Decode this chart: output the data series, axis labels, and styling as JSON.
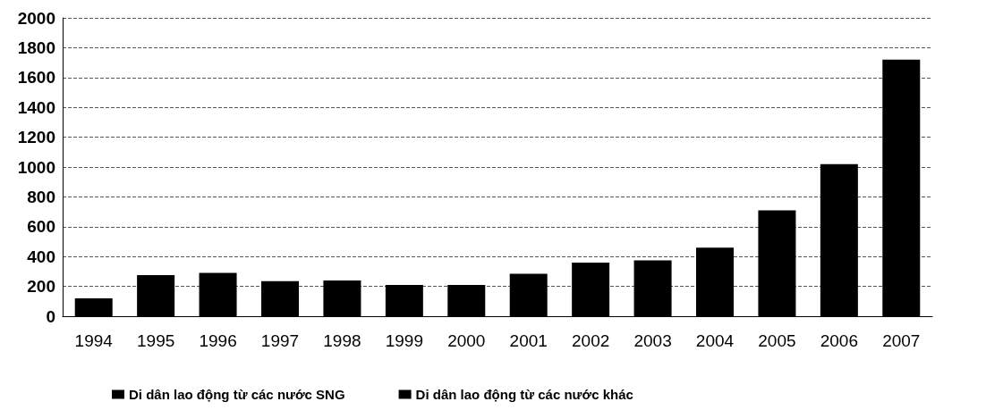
{
  "chart_data": {
    "type": "bar",
    "stacked": true,
    "categories": [
      "1994",
      "1995",
      "1996",
      "1997",
      "1998",
      "1999",
      "2000",
      "2001",
      "2002",
      "2003",
      "2004",
      "2005",
      "2006",
      "2007"
    ],
    "series": [
      {
        "name": "Di dân lao động từ các nước SNG",
        "color": "#000000",
        "values": [
          120,
          275,
          290,
          235,
          240,
          210,
          210,
          285,
          360,
          375,
          460,
          710,
          1020,
          1720
        ]
      },
      {
        "name": "Di dân lao động từ các nước khác",
        "color": "#000000",
        "values": [
          null,
          null,
          null,
          null,
          null,
          null,
          null,
          null,
          null,
          null,
          null,
          null,
          null,
          null
        ]
      }
    ],
    "ylim": [
      0,
      2000
    ],
    "yticks": [
      0,
      200,
      400,
      600,
      800,
      1000,
      1200,
      1400,
      1600,
      1800,
      2000
    ],
    "grid": "y",
    "legend": "bottom"
  }
}
